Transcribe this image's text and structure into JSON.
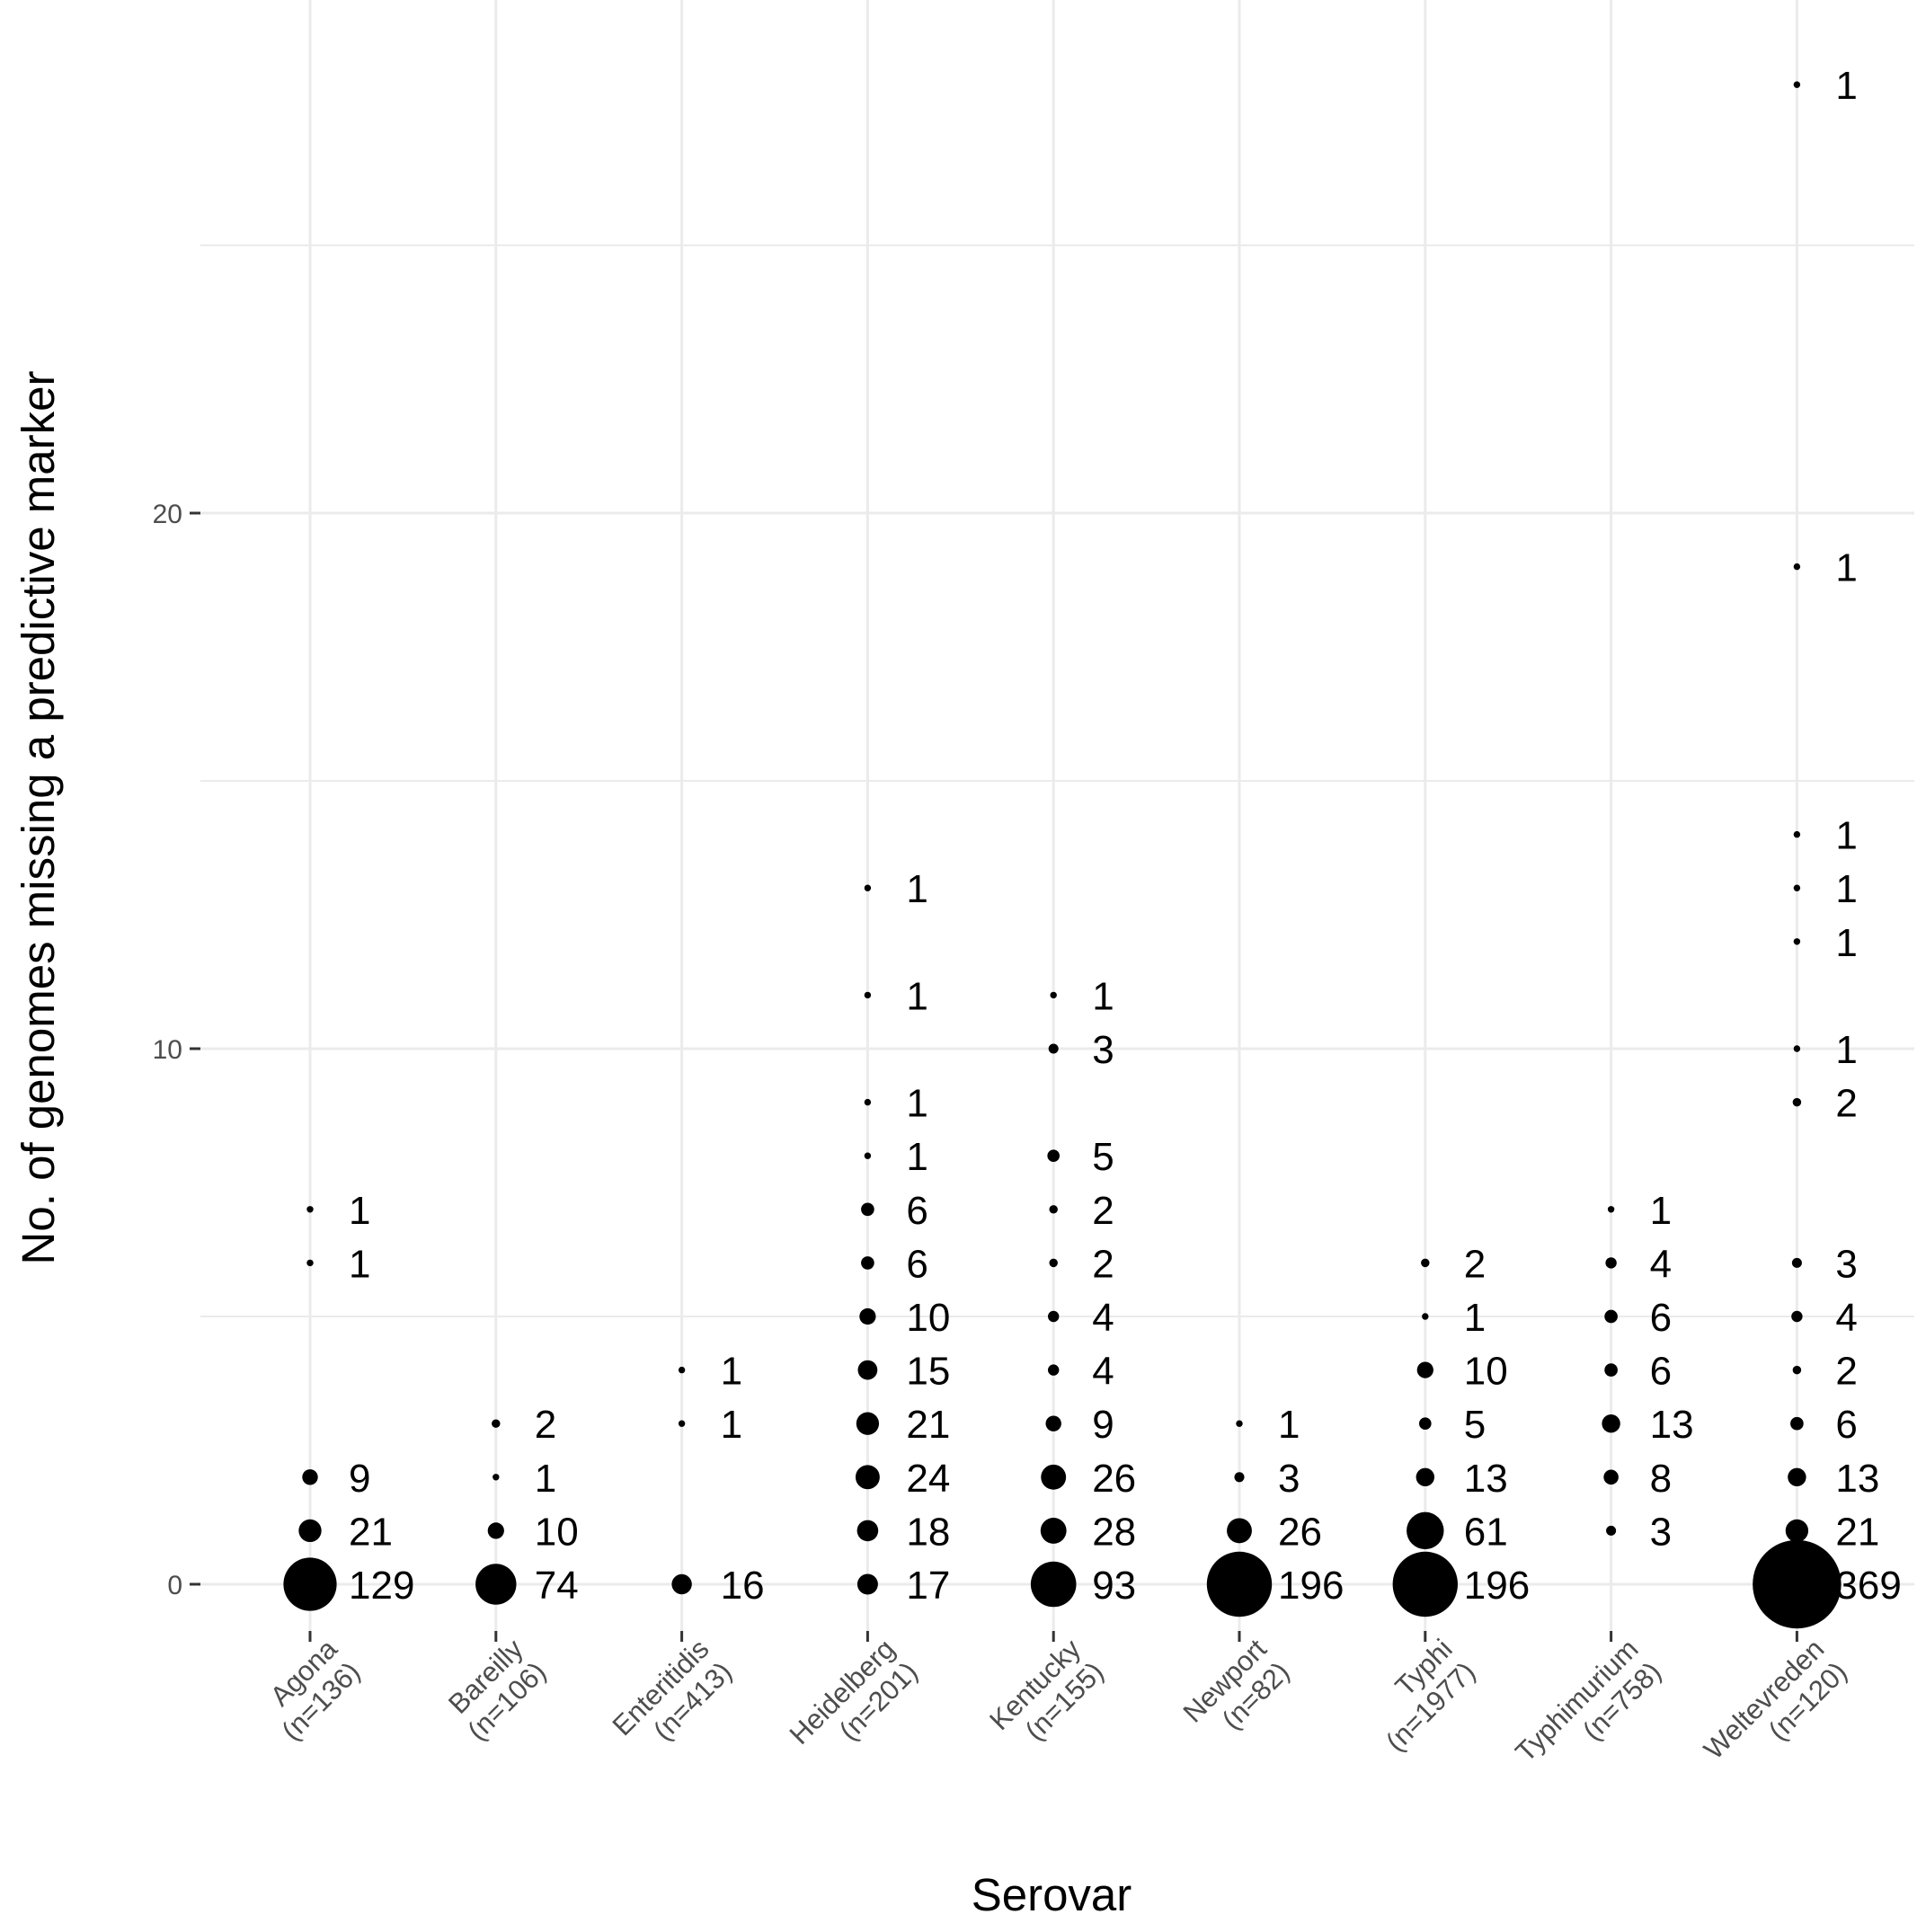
{
  "chart_data": {
    "type": "scatter",
    "xlabel": "Serovar",
    "ylabel": "No. of genomes missing a predictive marker",
    "ylim": [
      -1.5,
      29
    ],
    "y_major_ticks": [
      0,
      10,
      20
    ],
    "y_minor_ticks": [
      5,
      15,
      25
    ],
    "grid": true,
    "legend": "none",
    "categories": [
      {
        "name": "Agona",
        "n": "(n=136)"
      },
      {
        "name": "Bareilly",
        "n": "(n=106)"
      },
      {
        "name": "Enteritidis",
        "n": "(n=413)"
      },
      {
        "name": "Heidelberg",
        "n": "(n=201)"
      },
      {
        "name": "Kentucky",
        "n": "(n=155)"
      },
      {
        "name": "Newport",
        "n": "(n=82)"
      },
      {
        "name": "Typhi",
        "n": "(n=1977)"
      },
      {
        "name": "Typhimurium",
        "n": "(n=758)"
      },
      {
        "name": "Weltevreden",
        "n": "(n=120)"
      }
    ],
    "series": [
      {
        "category": "Agona",
        "points": [
          {
            "y": 0,
            "count": 129
          },
          {
            "y": 1,
            "count": 21
          },
          {
            "y": 2,
            "count": 9
          },
          {
            "y": 6,
            "count": 1
          },
          {
            "y": 7,
            "count": 1
          }
        ]
      },
      {
        "category": "Bareilly",
        "points": [
          {
            "y": 0,
            "count": 74
          },
          {
            "y": 1,
            "count": 10
          },
          {
            "y": 2,
            "count": 1
          },
          {
            "y": 3,
            "count": 2
          }
        ]
      },
      {
        "category": "Enteritidis",
        "points": [
          {
            "y": 0,
            "count": 16
          },
          {
            "y": 3,
            "count": 1
          },
          {
            "y": 4,
            "count": 1
          }
        ]
      },
      {
        "category": "Heidelberg",
        "points": [
          {
            "y": 0,
            "count": 17
          },
          {
            "y": 1,
            "count": 18
          },
          {
            "y": 2,
            "count": 24
          },
          {
            "y": 3,
            "count": 21
          },
          {
            "y": 4,
            "count": 15
          },
          {
            "y": 5,
            "count": 10
          },
          {
            "y": 6,
            "count": 6
          },
          {
            "y": 7,
            "count": 6
          },
          {
            "y": 8,
            "count": 1
          },
          {
            "y": 9,
            "count": 1
          },
          {
            "y": 11,
            "count": 1
          },
          {
            "y": 13,
            "count": 1
          }
        ]
      },
      {
        "category": "Kentucky",
        "points": [
          {
            "y": 0,
            "count": 93
          },
          {
            "y": 1,
            "count": 28
          },
          {
            "y": 2,
            "count": 26
          },
          {
            "y": 3,
            "count": 9
          },
          {
            "y": 4,
            "count": 4
          },
          {
            "y": 5,
            "count": 4
          },
          {
            "y": 6,
            "count": 2
          },
          {
            "y": 7,
            "count": 2
          },
          {
            "y": 8,
            "count": 5
          },
          {
            "y": 10,
            "count": 3
          },
          {
            "y": 11,
            "count": 1
          }
        ]
      },
      {
        "category": "Newport",
        "points": [
          {
            "y": 0,
            "count": 196
          },
          {
            "y": 1,
            "count": 26
          },
          {
            "y": 2,
            "count": 3
          },
          {
            "y": 3,
            "count": 1
          }
        ]
      },
      {
        "category": "Typhi",
        "points": [
          {
            "y": 0,
            "count": 196
          },
          {
            "y": 1,
            "count": 61
          },
          {
            "y": 2,
            "count": 13
          },
          {
            "y": 3,
            "count": 5
          },
          {
            "y": 4,
            "count": 10
          },
          {
            "y": 5,
            "count": 1
          },
          {
            "y": 6,
            "count": 2
          }
        ]
      },
      {
        "category": "Typhimurium",
        "points": [
          {
            "y": 1,
            "count": 3
          },
          {
            "y": 2,
            "count": 8
          },
          {
            "y": 3,
            "count": 13
          },
          {
            "y": 4,
            "count": 6
          },
          {
            "y": 5,
            "count": 6
          },
          {
            "y": 6,
            "count": 4
          },
          {
            "y": 7,
            "count": 1
          }
        ]
      },
      {
        "category": "Weltevreden",
        "points": [
          {
            "y": 0,
            "count": 369
          },
          {
            "y": 1,
            "count": 21
          },
          {
            "y": 2,
            "count": 13
          },
          {
            "y": 3,
            "count": 6
          },
          {
            "y": 4,
            "count": 2
          },
          {
            "y": 5,
            "count": 4
          },
          {
            "y": 6,
            "count": 3
          },
          {
            "y": 9,
            "count": 2
          },
          {
            "y": 10,
            "count": 1
          },
          {
            "y": 12,
            "count": 1
          },
          {
            "y": 13,
            "count": 1
          },
          {
            "y": 14,
            "count": 1
          },
          {
            "y": 19,
            "count": 1
          },
          {
            "y": 28,
            "count": 1
          }
        ]
      }
    ]
  }
}
